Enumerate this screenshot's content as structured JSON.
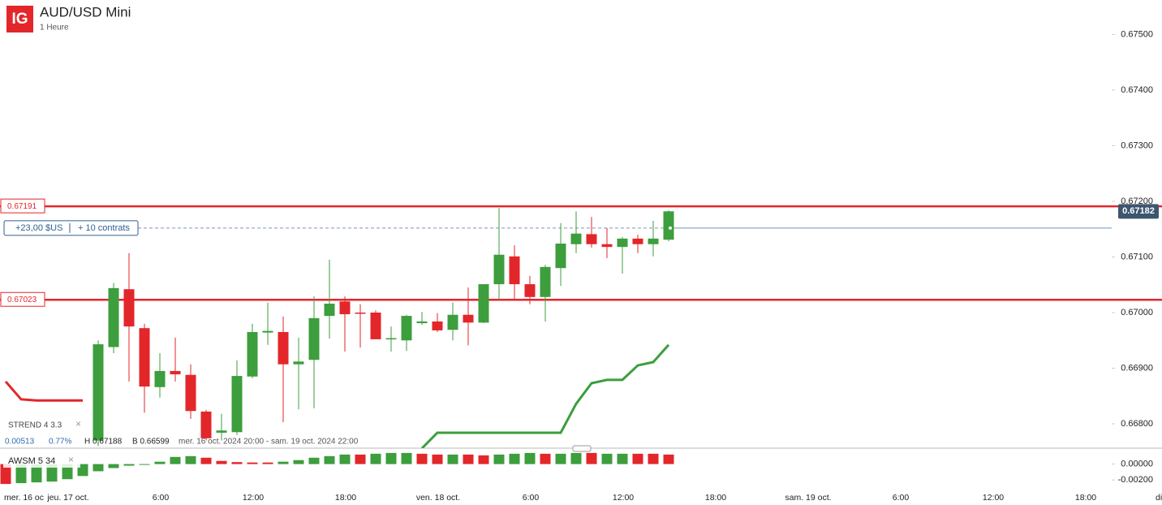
{
  "header": {
    "logo": "IG",
    "title": "AUD/USD Mini",
    "subtitle": "1 Heure"
  },
  "chart_data": {
    "type": "candlestick",
    "categories": [
      null,
      null,
      null,
      null,
      null,
      null,
      null,
      null,
      null,
      null,
      null,
      null,
      null,
      null,
      null,
      null,
      null,
      null,
      null,
      null,
      null,
      null,
      null,
      null,
      null,
      null,
      null,
      null,
      null,
      null,
      null,
      null,
      null,
      null,
      null,
      null,
      null,
      null,
      null,
      null,
      null,
      null,
      null,
      null
    ],
    "open": [
      null,
      null,
      null,
      null,
      null,
      null,
      0.6677,
      0.66938,
      0.67042,
      0.66972,
      0.66866,
      0.66895,
      0.66888,
      0.66822,
      0.66784,
      0.66785,
      0.66885,
      0.66964,
      0.66965,
      0.66907,
      0.66915,
      0.66994,
      0.6702,
      0.67,
      0.67,
      0.66952,
      0.6695,
      0.66981,
      0.66984,
      0.66969,
      0.66996,
      0.66982,
      0.67051,
      0.67101,
      0.67051,
      0.67028,
      0.6708,
      0.67123,
      0.67141,
      0.67123,
      0.67118,
      0.67133,
      0.67123,
      0.67131
    ],
    "high": [
      null,
      null,
      null,
      null,
      null,
      null,
      0.6695,
      0.67053,
      0.67107,
      0.6698,
      0.66927,
      0.66955,
      0.66907,
      0.66825,
      0.66818,
      0.66914,
      0.6698,
      0.67018,
      0.66993,
      0.66955,
      0.67029,
      0.67095,
      0.67029,
      0.67015,
      0.67004,
      0.66975,
      0.66996,
      0.67001,
      0.66999,
      0.67018,
      0.67045,
      0.67051,
      0.67188,
      0.67121,
      0.67066,
      0.67086,
      0.67161,
      0.67182,
      0.67172,
      0.67152,
      0.67136,
      0.6714,
      0.67165,
      0.67184
    ],
    "low": [
      null,
      null,
      null,
      null,
      null,
      null,
      0.6676,
      0.66927,
      0.66876,
      0.6682,
      0.66847,
      0.66876,
      0.66809,
      0.6677,
      0.6677,
      0.6678,
      0.66882,
      0.66942,
      0.66803,
      0.66826,
      0.66828,
      0.66953,
      0.6693,
      0.66937,
      0.66952,
      0.6693,
      0.66931,
      0.66978,
      0.66965,
      0.6695,
      0.66941,
      0.66981,
      0.67022,
      0.67022,
      0.67015,
      0.66984,
      0.67048,
      0.67107,
      0.67117,
      0.67098,
      0.6707,
      0.67107,
      0.67101,
      0.67128
    ],
    "close": [
      null,
      null,
      null,
      null,
      null,
      null,
      0.66943,
      0.67044,
      0.66975,
      0.66867,
      0.66895,
      0.66889,
      0.66823,
      0.66774,
      0.66788,
      0.66886,
      0.66965,
      0.66967,
      0.66907,
      0.66912,
      0.6699,
      0.67016,
      0.66997,
      0.66999,
      0.66952,
      0.66954,
      0.66994,
      0.66984,
      0.66968,
      0.66996,
      0.66982,
      0.67051,
      0.67104,
      0.67051,
      0.67028,
      0.67082,
      0.67124,
      0.67142,
      0.67123,
      0.67118,
      0.67133,
      0.67123,
      0.67133,
      0.67182
    ],
    "up_color": "#3c9e3c",
    "down_color": "#e3262a",
    "strend_down": {
      "color": "#e3262a",
      "values": [
        0.66876,
        0.66844,
        0.66842,
        0.66842,
        0.66842,
        0.66842,
        null,
        null,
        null,
        null,
        null,
        null,
        null,
        null,
        null,
        null,
        null,
        null,
        null,
        null,
        null,
        null,
        null,
        null,
        null,
        null,
        null,
        null,
        null,
        null,
        null,
        null,
        null,
        null,
        null,
        null,
        null,
        null,
        null,
        null,
        null,
        null,
        null,
        null
      ]
    },
    "strend_up": {
      "color": "#3c9e3c",
      "values": [
        null,
        null,
        null,
        null,
        null,
        null,
        null,
        null,
        null,
        null,
        null,
        null,
        null,
        null,
        null,
        null,
        null,
        null,
        null,
        null,
        null,
        null,
        null,
        null,
        null,
        null,
        null,
        0.66756,
        0.66784,
        0.66784,
        0.66784,
        0.66784,
        0.66784,
        0.66784,
        0.66784,
        0.66784,
        0.66784,
        0.66836,
        0.66873,
        0.66879,
        0.66879,
        0.66905,
        0.66911,
        0.66942
      ]
    },
    "ylim": [
      0.667562,
      0.67562
    ],
    "yticks": [
      {
        "value": 0.675,
        "label": "0.67500"
      },
      {
        "value": 0.674,
        "label": "0.67400"
      },
      {
        "value": 0.673,
        "label": "0.67300"
      },
      {
        "value": 0.672,
        "label": "0.67200"
      },
      {
        "value": 0.671,
        "label": "0.67100"
      },
      {
        "value": 0.67,
        "label": "0.67000"
      },
      {
        "value": 0.669,
        "label": "0.66900"
      },
      {
        "value": 0.668,
        "label": "0.66800"
      }
    ],
    "levels": [
      {
        "value": 0.67191,
        "label": "0.67191"
      },
      {
        "value": 0.67023,
        "label": "0.67023"
      }
    ],
    "level_color": "#e3262a",
    "position": {
      "value": 0.67152,
      "pnl": "+23,00 $US",
      "size": "+ 10 contrats"
    },
    "last_price": {
      "value": 0.67182,
      "label": "0.67182"
    },
    "x_labels": [
      "mer. 16 oc",
      "jeu. 17 oct.",
      "6:00",
      "12:00",
      "18:00",
      "ven. 18 oct.",
      "6:00",
      "12:00",
      "18:00",
      "sam. 19 oct.",
      "6:00",
      "12:00",
      "18:00",
      "di"
    ],
    "info": {
      "strend": "STREND  4  3.3",
      "change": "0.00513",
      "change_pct": "0.77%",
      "high": "H 0.67188",
      "low": "B 0.66599",
      "range": "mer. 16 oct. 2024 20:00 - sam. 19 oct. 2024 22:00"
    },
    "awsm": {
      "label": "AWSM  5  34",
      "values": [
        -0.0025,
        -0.0024,
        -0.0023,
        -0.0022,
        -0.0019,
        -0.0015,
        -0.0009,
        -0.0005,
        -0.0002,
        -5e-05,
        0.0003,
        0.0009,
        0.001,
        0.0008,
        0.0004,
        0.00025,
        0.0002,
        0.0002,
        0.0003,
        0.0005,
        0.0008,
        0.001,
        0.0012,
        0.0012,
        0.0013,
        0.0014,
        0.0014,
        0.0013,
        0.0012,
        0.0012,
        0.0012,
        0.0011,
        0.0012,
        0.0013,
        0.0014,
        0.0013,
        0.0013,
        0.0014,
        0.0014,
        0.0013,
        0.0013,
        0.0013,
        0.0013,
        0.0012
      ],
      "colors": [
        "#e3262a",
        "#3c9e3c",
        "#3c9e3c",
        "#3c9e3c",
        "#3c9e3c",
        "#3c9e3c",
        "#3c9e3c",
        "#3c9e3c",
        "#3c9e3c",
        "#3c9e3c",
        "#3c9e3c",
        "#3c9e3c",
        "#3c9e3c",
        "#e3262a",
        "#e3262a",
        "#e3262a",
        "#e3262a",
        "#e3262a",
        "#3c9e3c",
        "#3c9e3c",
        "#3c9e3c",
        "#3c9e3c",
        "#3c9e3c",
        "#e3262a",
        "#3c9e3c",
        "#3c9e3c",
        "#3c9e3c",
        "#e3262a",
        "#e3262a",
        "#3c9e3c",
        "#e3262a",
        "#e3262a",
        "#3c9e3c",
        "#3c9e3c",
        "#3c9e3c",
        "#e3262a",
        "#3c9e3c",
        "#3c9e3c",
        "#e3262a",
        "#3c9e3c",
        "#3c9e3c",
        "#e3262a",
        "#e3262a",
        "#e3262a"
      ],
      "ylim": [
        -0.0029,
        0.0019
      ],
      "yticks": [
        {
          "value": 0,
          "label": "0.00000"
        },
        {
          "value": -0.002,
          "label": "-0.00200"
        }
      ]
    }
  }
}
